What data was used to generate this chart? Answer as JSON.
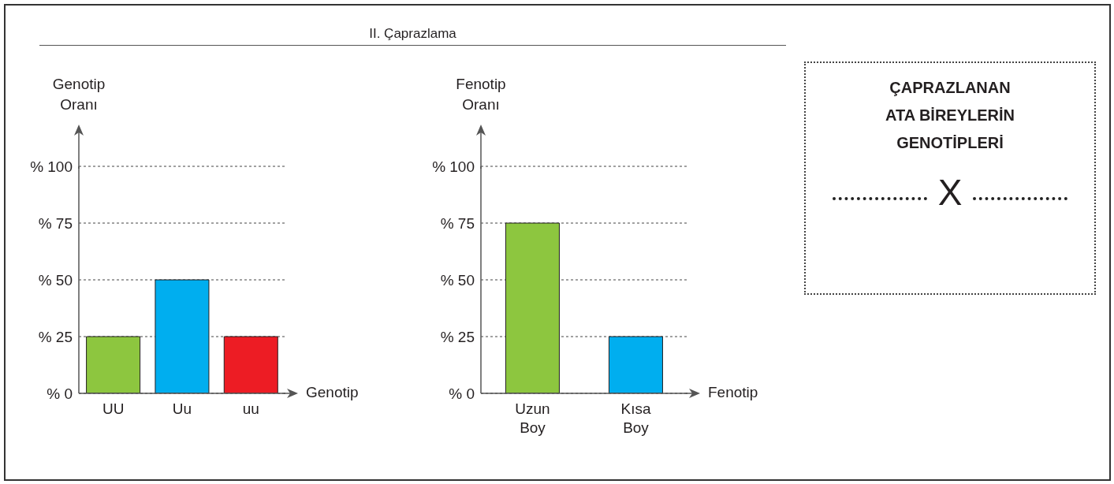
{
  "chart_data": [
    {
      "type": "bar",
      "ylabel": "Genotip\nOranı",
      "xlabel": "Genotip",
      "categories": [
        "UU",
        "Uu",
        "uu"
      ],
      "values": [
        25,
        50,
        25
      ],
      "colors": [
        "#8dc63f",
        "#00aeef",
        "#ed1c24"
      ],
      "ylim": [
        0,
        100
      ],
      "yticks": [
        {
          "value": 0,
          "label": "% 0"
        },
        {
          "value": 25,
          "label": "% 25"
        },
        {
          "value": 50,
          "label": "% 50"
        },
        {
          "value": 75,
          "label": "% 75"
        },
        {
          "value": 100,
          "label": "% 100"
        }
      ],
      "grid": "y"
    },
    {
      "type": "bar",
      "title": "II. Çaprazlama",
      "ylabel": "Fenotip\nOranı",
      "xlabel": "Fenotip",
      "categories": [
        "Uzun Boy",
        "Kısa Boy"
      ],
      "values": [
        75,
        25
      ],
      "colors": [
        "#8dc63f",
        "#00aeef"
      ],
      "ylim": [
        0,
        100
      ],
      "yticks": [
        {
          "value": 0,
          "label": "% 0"
        },
        {
          "value": 25,
          "label": "% 25"
        },
        {
          "value": 50,
          "label": "% 50"
        },
        {
          "value": 75,
          "label": "% 75"
        },
        {
          "value": 100,
          "label": "% 100"
        }
      ],
      "grid": "y"
    },
    {
      "type": "other",
      "title": "ÇAPRAZLANAN\nATA BİREYLERİN\nGENOTİPLERİ",
      "annotations": [
        "X"
      ]
    }
  ]
}
